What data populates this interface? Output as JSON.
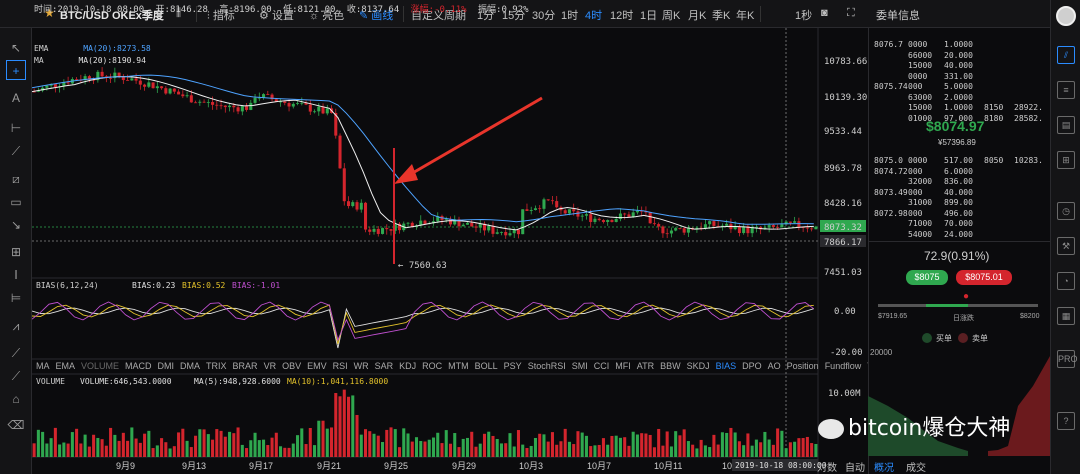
{
  "header": {
    "symbol": "BTC/USD OKEx季度",
    "toolbar": [
      "指标",
      "设置",
      "亮色",
      "画线"
    ],
    "periods": [
      "自定义周期",
      "1分",
      "15分",
      "30分",
      "1时",
      "4时",
      "12时",
      "1日",
      "周K",
      "月K",
      "季K",
      "年K"
    ],
    "active_period": "4时",
    "speed": "1秒"
  },
  "info_line": {
    "time": "时间:2019-10-18 08:00",
    "open": "开:8146.28",
    "high": "高:8196.00",
    "low": "低:8121.00",
    "close": "收:8137.64",
    "change": "涨幅:-0.11%",
    "amplitude": "振幅:0.92%"
  },
  "legend": {
    "ema": "EMA",
    "ema_val": "MA(20):8273.58",
    "ma": "MA",
    "ma_val": "MA(20):8190.94"
  },
  "price_axis": [
    "10783.66",
    "10139.30",
    "9533.44",
    "8963.78",
    "8428.16",
    "8073.32",
    "7866.17",
    "7451.03"
  ],
  "low_label": "← 7560.63",
  "bias": {
    "label": "BIAS(6,12,24)",
    "b1": "BIAS:0.23",
    "b2": "BIAS:0.52",
    "b3": "BIAS:-1.01",
    "axis": [
      "0.00",
      "-20.00"
    ]
  },
  "indicator_tabs": [
    "MA",
    "EMA",
    "VOLUME",
    "MACD",
    "DMI",
    "DMA",
    "TRIX",
    "BRAR",
    "VR",
    "OBV",
    "EMV",
    "RSI",
    "WR",
    "SAR",
    "KDJ",
    "ROC",
    "MTM",
    "BOLL",
    "PSY",
    "StochRSI",
    "SMI",
    "CCI",
    "MFI",
    "ATR",
    "BBW",
    "SKDJ",
    "BIAS",
    "DPO",
    "AO",
    "Position",
    "Fundflow",
    "TTSI"
  ],
  "volume": {
    "label": "VOLUME",
    "v": "VOLUME:646,543.0000",
    "ma5": "MA(5):948,928.6000",
    "ma10": "MA(10):1,041,116.8000",
    "axis": "10.00M"
  },
  "x_axis": [
    "9月9",
    "9月13",
    "9月17",
    "9月21",
    "9月25",
    "9月29",
    "10月3",
    "10月7",
    "10月11",
    "10月"
  ],
  "cursor_time": "2019-10-18 08:00:00",
  "bottom_tabs": [
    "对数",
    "自动",
    "概况",
    "成交"
  ],
  "order_book": {
    "title": "委单信息",
    "asks": [
      [
        "8076.7",
        "0000",
        "1.0000",
        "",
        ""
      ],
      [
        "",
        "66000",
        "20.000",
        "",
        ""
      ],
      [
        "",
        "15000",
        "40.000",
        "",
        ""
      ],
      [
        "",
        "0000",
        "331.00",
        "",
        ""
      ],
      [
        "8075.74",
        "000",
        "5.0000",
        "",
        ""
      ],
      [
        "",
        "63000",
        "2.0000",
        "",
        ""
      ],
      [
        "",
        "15000",
        "1.0000",
        "8150",
        "28922."
      ],
      [
        "",
        "01000",
        "97.000",
        "8180",
        "28582."
      ]
    ],
    "last_price": "$8074.97",
    "cny_price": "¥57396.89",
    "bids": [
      [
        "8075.0",
        "0000",
        "517.00",
        "8050",
        "10283."
      ],
      [
        "8074.72",
        "000",
        "6.0000",
        "",
        ""
      ],
      [
        "",
        "32000",
        "836.00",
        "",
        ""
      ],
      [
        "8073.49",
        "000",
        "40.000",
        "",
        ""
      ],
      [
        "",
        "31000",
        "899.00",
        "",
        ""
      ],
      [
        "8072.98",
        "000",
        "496.00",
        "",
        ""
      ],
      [
        "",
        "71000",
        "70.000",
        "",
        ""
      ],
      [
        "",
        "54000",
        "24.000",
        "",
        ""
      ]
    ],
    "change": "72.9(0.91%)",
    "buy_price": "$8075",
    "sell_price": "$8075.01",
    "range_low": "$7919.65",
    "range_high": "$8200",
    "range_label": "日涨跌",
    "buy_label": "买单",
    "sell_label": "卖单",
    "depth_axis": "20000"
  },
  "watermark": "bitcoin爆仓大神",
  "colors": {
    "up": "#2fa84f",
    "down": "#d4252d",
    "accent": "#2b8cff"
  }
}
